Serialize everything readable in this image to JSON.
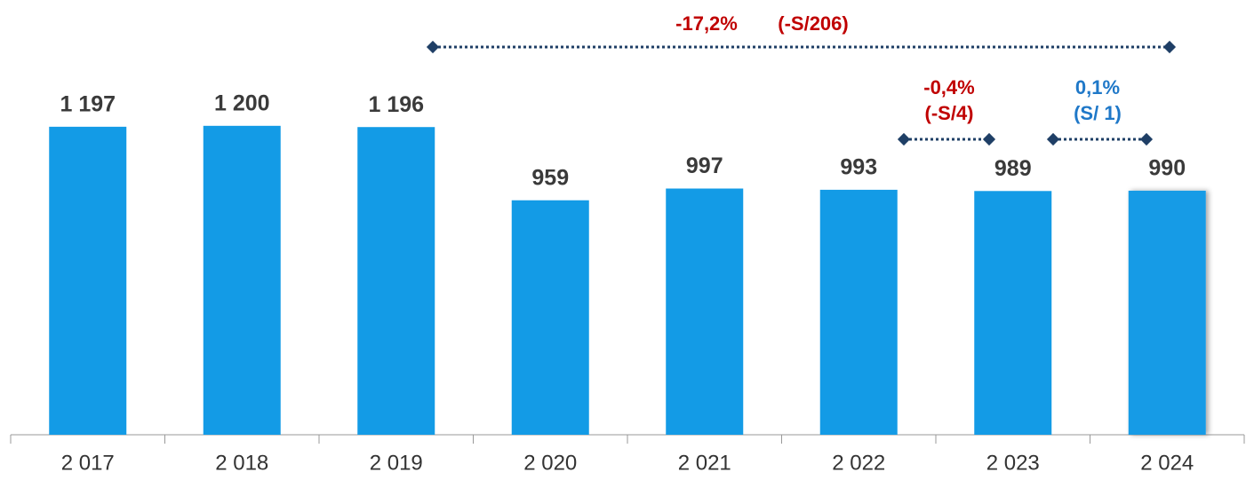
{
  "chart_data": {
    "type": "bar",
    "categories": [
      "2 017",
      "2 018",
      "2 019",
      "2 020",
      "2 021",
      "2 022",
      "2 023",
      "2 024"
    ],
    "values": [
      1197,
      1200,
      1196,
      959,
      997,
      993,
      989,
      990
    ],
    "value_labels": [
      "1 197",
      "1 200",
      "1 196",
      "959",
      "997",
      "993",
      "989",
      "990"
    ],
    "color": "#139be6",
    "ylim": [
      200,
      1300
    ],
    "annotations": [
      {
        "texts": [
          "-17,2%",
          "(-S/206)"
        ],
        "color": "#c00000"
      },
      {
        "texts": [
          "-0,4%",
          "(-S/4)"
        ],
        "color": "#c00000"
      },
      {
        "texts": [
          "0,1%",
          "(S/ 1)"
        ],
        "color": "#1f78c8"
      }
    ]
  }
}
